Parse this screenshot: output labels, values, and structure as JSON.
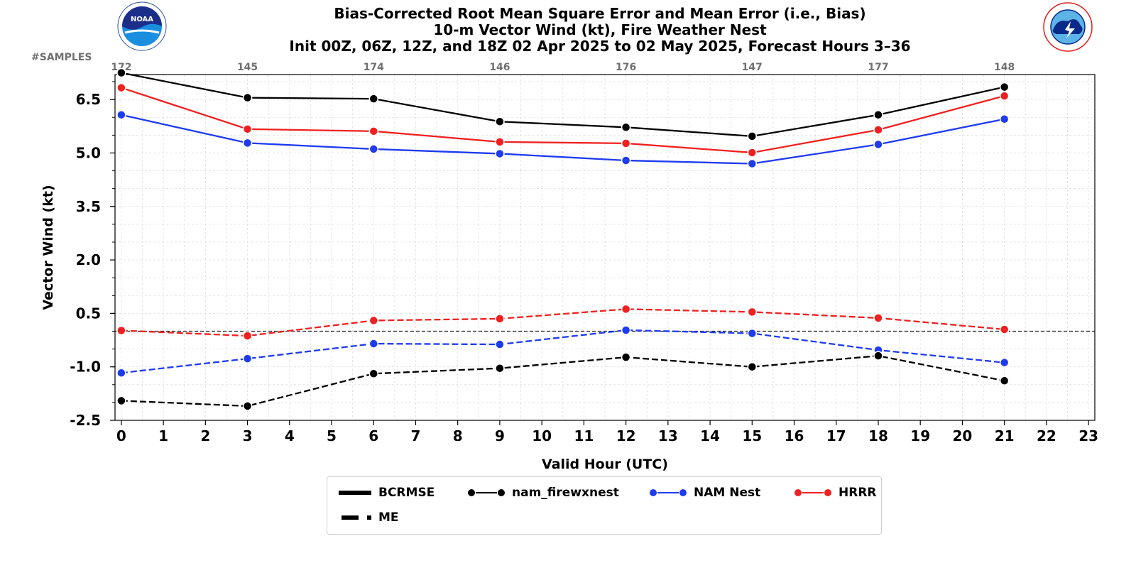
{
  "title_lines": [
    "Bias-Corrected Root Mean Square Error and Mean Error (i.e., Bias)",
    "10-m Vector Wind (kt), Fire Weather Nest",
    "Init 00Z, 06Z, 12Z, and 18Z 02 Apr 2025 to 02 May 2025, Forecast Hours 3–36"
  ],
  "samples_label": "#SAMPLES",
  "logos": {
    "left": "NOAA",
    "right": "NATIONAL WEATHER SERVICE"
  },
  "legend": {
    "bcrmse": "BCRMSE",
    "me": "ME",
    "models": [
      {
        "name": "nam_firewxnest",
        "color": "#000000"
      },
      {
        "name": "NAM Nest",
        "color": "#1f3bf0"
      },
      {
        "name": "HRRR",
        "color": "#f02020"
      }
    ]
  },
  "chart_data": {
    "type": "line",
    "xlabel": "Valid Hour (UTC)",
    "ylabel": "Vector Wind (kt)",
    "xlim": [
      -0.15,
      23.15
    ],
    "ylim": [
      -2.5,
      7.2
    ],
    "x_ticks": [
      0,
      1,
      2,
      3,
      4,
      5,
      6,
      7,
      8,
      9,
      10,
      11,
      12,
      13,
      14,
      15,
      16,
      17,
      18,
      19,
      20,
      21,
      22,
      23
    ],
    "y_ticks": [
      -2.5,
      -1.0,
      0.5,
      2.0,
      3.5,
      5.0,
      6.5
    ],
    "y_tick_labels": [
      "-2.5",
      "-1.0",
      "0.5",
      "2.0",
      "3.5",
      "5.0",
      "6.5"
    ],
    "grid": true,
    "legend_placement": "bottom-center",
    "reference_line_y": 0,
    "x": [
      0,
      3,
      6,
      9,
      12,
      15,
      18,
      21
    ],
    "samples": [
      "172",
      "145",
      "174",
      "146",
      "176",
      "147",
      "177",
      "148"
    ],
    "series": [
      {
        "name": "nam_firewxnest",
        "metric": "BCRMSE",
        "color": "#000000",
        "dash": false,
        "values": [
          7.25,
          6.55,
          6.52,
          5.88,
          5.72,
          5.47,
          6.07,
          6.85
        ]
      },
      {
        "name": "HRRR",
        "metric": "BCRMSE",
        "color": "#f02020",
        "dash": false,
        "values": [
          6.83,
          5.67,
          5.61,
          5.31,
          5.27,
          5.01,
          5.65,
          6.6
        ]
      },
      {
        "name": "NAM Nest",
        "metric": "BCRMSE",
        "color": "#1f3bf0",
        "dash": false,
        "values": [
          6.07,
          5.28,
          5.11,
          4.98,
          4.79,
          4.7,
          5.24,
          5.95
        ]
      },
      {
        "name": "HRRR",
        "metric": "ME",
        "color": "#f02020",
        "dash": true,
        "values": 0.02,
        "values_list": [
          0.02,
          -0.13,
          0.3,
          0.35,
          0.62,
          0.54,
          0.37,
          0.05
        ]
      },
      {
        "name": "NAM Nest",
        "metric": "ME",
        "color": "#1f3bf0",
        "dash": true,
        "values_list": [
          -1.17,
          -0.77,
          -0.35,
          -0.37,
          0.03,
          -0.06,
          -0.53,
          -0.88
        ]
      },
      {
        "name": "nam_firewxnest",
        "metric": "ME",
        "color": "#000000",
        "dash": true,
        "values_list": [
          -1.95,
          -2.1,
          -1.19,
          -1.04,
          -0.73,
          -1.0,
          -0.69,
          -1.39
        ]
      }
    ]
  }
}
